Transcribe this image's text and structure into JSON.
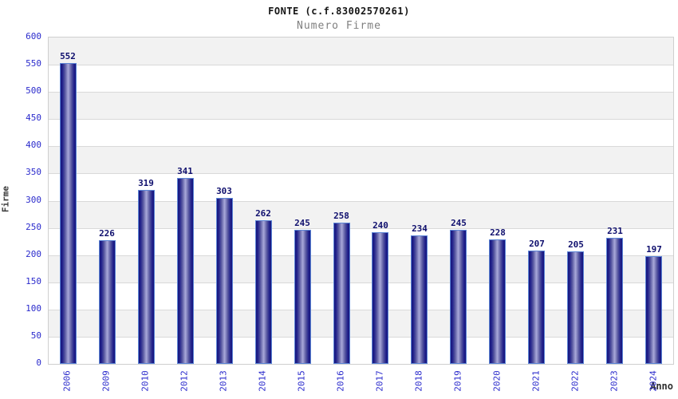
{
  "chart": {
    "title": "FONTE (c.f.83002570261)",
    "subtitle": "Numero Firme"
  },
  "chart_data": {
    "type": "bar",
    "title": "FONTE (c.f.83002570261)",
    "subtitle": "Numero Firme",
    "xlabel": "Anno",
    "ylabel": "Firme",
    "categories": [
      "2006",
      "2009",
      "2010",
      "2012",
      "2013",
      "2014",
      "2015",
      "2016",
      "2017",
      "2018",
      "2019",
      "2020",
      "2021",
      "2022",
      "2023",
      "2024"
    ],
    "values": [
      552,
      226,
      319,
      341,
      303,
      262,
      245,
      258,
      240,
      234,
      245,
      228,
      207,
      205,
      231,
      197
    ],
    "ylim": [
      0,
      600
    ],
    "ytick_step": 50,
    "grid": true,
    "legend_position": "none",
    "colors": {
      "bar_edge": "#15157d",
      "bar_center": "#a8a8da",
      "bar_border": "#5c85d6",
      "tick_label": "#2b2bcc",
      "value_label": "#10106e",
      "band_gray": "#f2f2f2",
      "band_white": "#ffffff",
      "gridline": "#d9d9d9",
      "plot_border": "#cfcfcf",
      "subtitle": "#7f7f7f"
    }
  }
}
